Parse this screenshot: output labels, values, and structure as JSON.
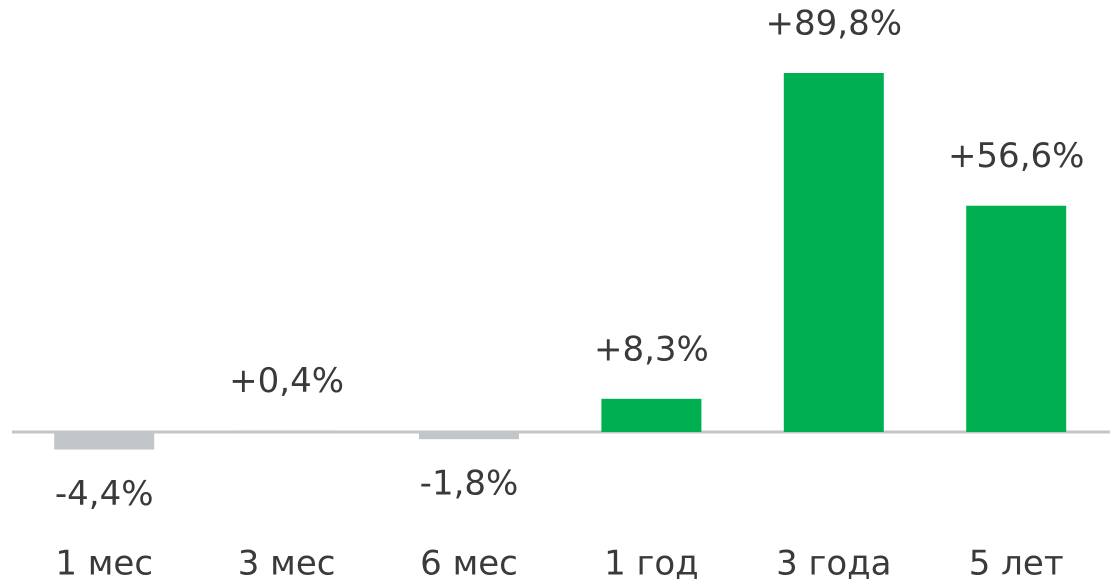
{
  "chart_data": {
    "type": "bar",
    "categories": [
      "1 мес",
      "3 мес",
      "6 мес",
      "1 год",
      "3 года",
      "5 лет"
    ],
    "values": [
      -4.4,
      0.4,
      -1.8,
      8.3,
      89.8,
      56.6
    ],
    "value_labels": [
      "-4,4%",
      "+0,4%",
      "-1,8%",
      "+8,3%",
      "+89,8%",
      "+56,6%"
    ],
    "colors": [
      "#c3c6c9",
      "#c3c6c9",
      "#c3c6c9",
      "#00b050",
      "#00b050",
      "#00b050"
    ]
  }
}
